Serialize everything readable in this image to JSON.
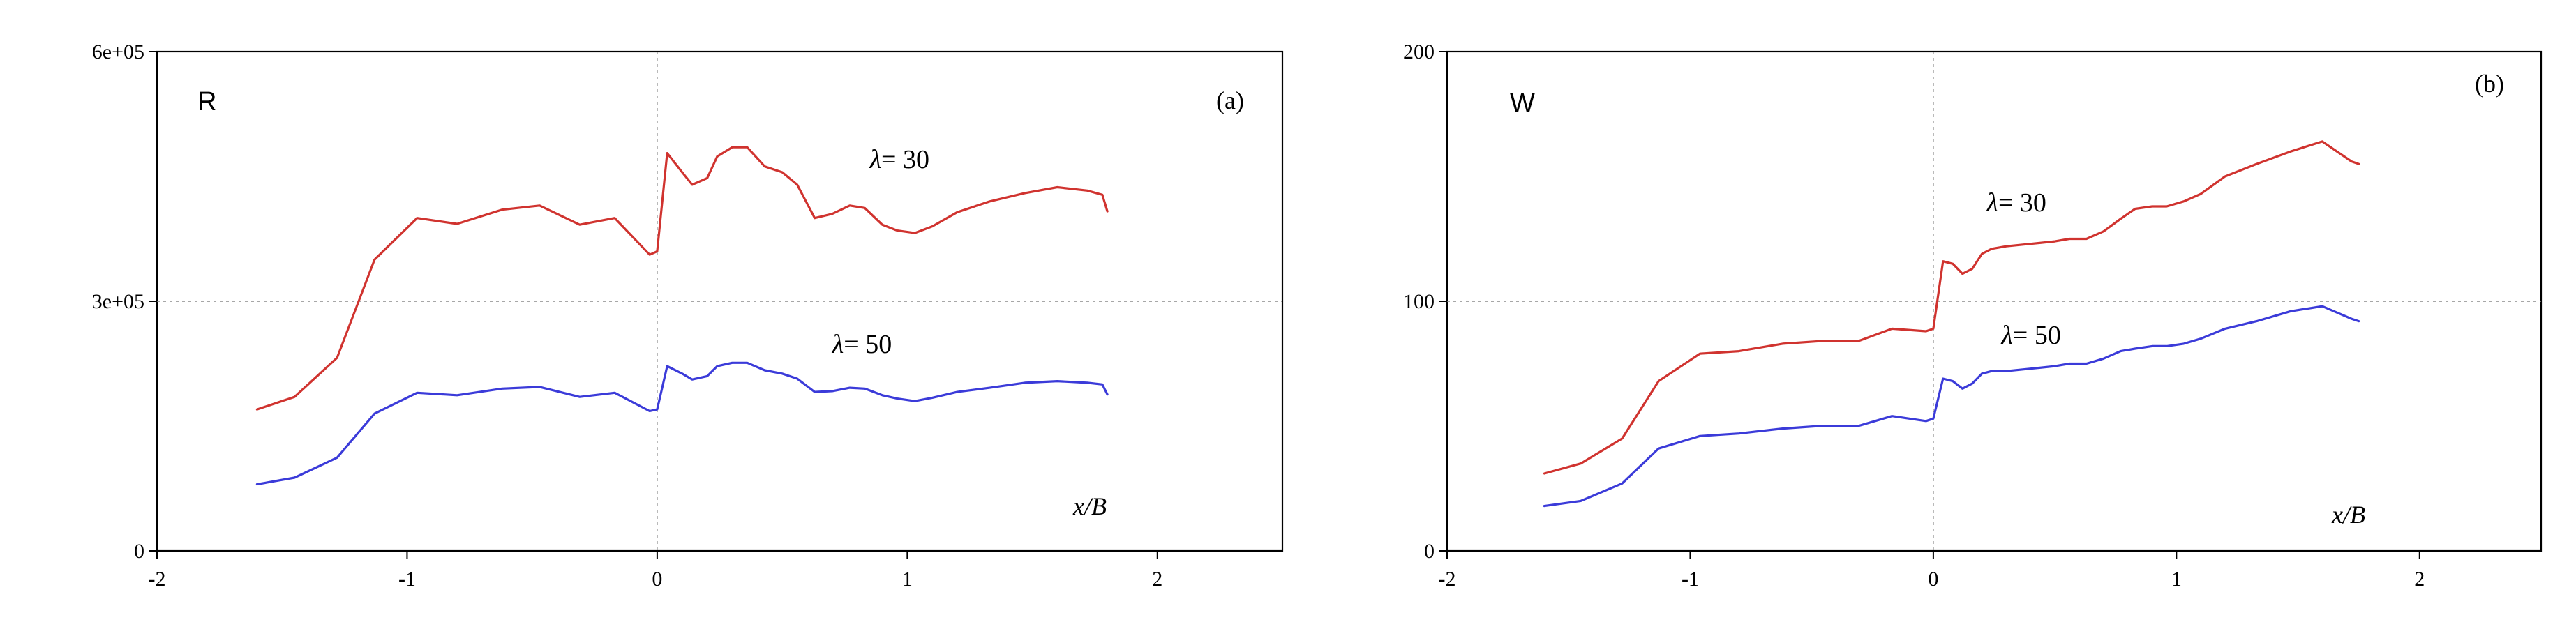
{
  "chart_data": [
    {
      "type": "line",
      "panel_letter": "R",
      "panel_tag": "(a)",
      "xlabel": "x/B",
      "xlim": [
        -2,
        2.5
      ],
      "ylim": [
        0,
        600000
      ],
      "x_ticks": [
        -2,
        -1,
        0,
        1,
        2
      ],
      "x_tick_labels": [
        "-2",
        "-1",
        "0",
        "1",
        "2"
      ],
      "y_ticks": [
        0,
        300000,
        600000
      ],
      "y_tick_labels": [
        "0",
        "3e+05",
        "6e+05"
      ],
      "reference_lines": {
        "x": 0,
        "y": 300000
      },
      "series": [
        {
          "name": "λ= 30",
          "symbol": "λ",
          "label": "= 30",
          "color": "#d0332f",
          "label_at": [
            0.85,
            460000
          ],
          "x": [
            -1.6,
            -1.45,
            -1.28,
            -1.13,
            -0.96,
            -0.8,
            -0.62,
            -0.47,
            -0.31,
            -0.17,
            -0.03,
            0,
            0.04,
            0.1,
            0.14,
            0.2,
            0.24,
            0.3,
            0.36,
            0.43,
            0.5,
            0.56,
            0.63,
            0.7,
            0.77,
            0.83,
            0.9,
            0.96,
            1.03,
            1.1,
            1.2,
            1.33,
            1.47,
            1.6,
            1.72,
            1.78,
            1.8
          ],
          "y": [
            170000,
            185000,
            232000,
            350000,
            400000,
            393000,
            410000,
            415000,
            392000,
            400000,
            356000,
            360000,
            478000,
            455000,
            440000,
            448000,
            474000,
            485000,
            485000,
            462000,
            455000,
            440000,
            400000,
            405000,
            415000,
            412000,
            392000,
            385000,
            382000,
            390000,
            407000,
            420000,
            430000,
            437000,
            433000,
            428000,
            408000
          ]
        },
        {
          "name": "λ= 50",
          "symbol": "λ",
          "label": "= 50",
          "color": "#3b3bd9",
          "label_at": [
            0.7,
            238000
          ],
          "x": [
            -1.6,
            -1.45,
            -1.28,
            -1.13,
            -0.96,
            -0.8,
            -0.62,
            -0.47,
            -0.31,
            -0.17,
            -0.03,
            0,
            0.04,
            0.1,
            0.14,
            0.2,
            0.24,
            0.3,
            0.36,
            0.43,
            0.5,
            0.56,
            0.63,
            0.7,
            0.77,
            0.83,
            0.9,
            0.96,
            1.03,
            1.1,
            1.2,
            1.33,
            1.47,
            1.6,
            1.72,
            1.78,
            1.8
          ],
          "y": [
            80000,
            88000,
            112000,
            165000,
            190000,
            187000,
            195000,
            197000,
            185000,
            190000,
            168000,
            170000,
            222000,
            213000,
            206000,
            210000,
            222000,
            226000,
            226000,
            217000,
            213000,
            207000,
            191000,
            192000,
            196000,
            195000,
            187000,
            183000,
            180000,
            184000,
            191000,
            196000,
            202000,
            204000,
            202000,
            200000,
            188000
          ]
        }
      ]
    },
    {
      "type": "line",
      "panel_letter": "W",
      "panel_tag": "(b)",
      "xlabel": "x/B",
      "xlim": [
        -2,
        2.5
      ],
      "ylim": [
        0,
        200
      ],
      "x_ticks": [
        -2,
        -1,
        0,
        1,
        2
      ],
      "x_tick_labels": [
        "-2",
        "-1",
        "0",
        "1",
        "2"
      ],
      "y_ticks": [
        0,
        100,
        200
      ],
      "y_tick_labels": [
        "0",
        "100",
        "200"
      ],
      "reference_lines": {
        "x": 0,
        "y": 100
      },
      "series": [
        {
          "name": "λ= 30",
          "symbol": "λ",
          "label": "= 30",
          "color": "#d0332f",
          "label_at": [
            0.22,
            136
          ],
          "x": [
            -1.6,
            -1.45,
            -1.28,
            -1.13,
            -0.96,
            -0.8,
            -0.62,
            -0.47,
            -0.31,
            -0.17,
            -0.03,
            0,
            0.04,
            0.08,
            0.12,
            0.16,
            0.2,
            0.24,
            0.3,
            0.4,
            0.5,
            0.56,
            0.63,
            0.7,
            0.77,
            0.83,
            0.9,
            0.96,
            1.03,
            1.1,
            1.2,
            1.33,
            1.47,
            1.6,
            1.72,
            1.75
          ],
          "y": [
            31,
            35,
            45,
            68,
            79,
            80,
            83,
            84,
            84,
            89,
            88,
            89,
            116,
            115,
            111,
            113,
            119,
            121,
            122,
            123,
            124,
            125,
            125,
            128,
            133,
            137,
            138,
            138,
            140,
            143,
            150,
            155,
            160,
            164,
            156,
            155
          ]
        },
        {
          "name": "λ= 50",
          "symbol": "λ",
          "label": "= 50",
          "color": "#3b3bd9",
          "label_at": [
            0.28,
            83
          ],
          "x": [
            -1.6,
            -1.45,
            -1.28,
            -1.13,
            -0.96,
            -0.8,
            -0.62,
            -0.47,
            -0.31,
            -0.17,
            -0.03,
            0,
            0.04,
            0.08,
            0.12,
            0.16,
            0.2,
            0.24,
            0.3,
            0.4,
            0.5,
            0.56,
            0.63,
            0.7,
            0.77,
            0.83,
            0.9,
            0.96,
            1.03,
            1.1,
            1.2,
            1.33,
            1.47,
            1.6,
            1.72,
            1.75
          ],
          "y": [
            18,
            20,
            27,
            41,
            46,
            47,
            49,
            50,
            50,
            54,
            52,
            53,
            69,
            68,
            65,
            67,
            71,
            72,
            72,
            73,
            74,
            75,
            75,
            77,
            80,
            81,
            82,
            82,
            83,
            85,
            89,
            92,
            96,
            98,
            93,
            92
          ]
        }
      ]
    }
  ]
}
